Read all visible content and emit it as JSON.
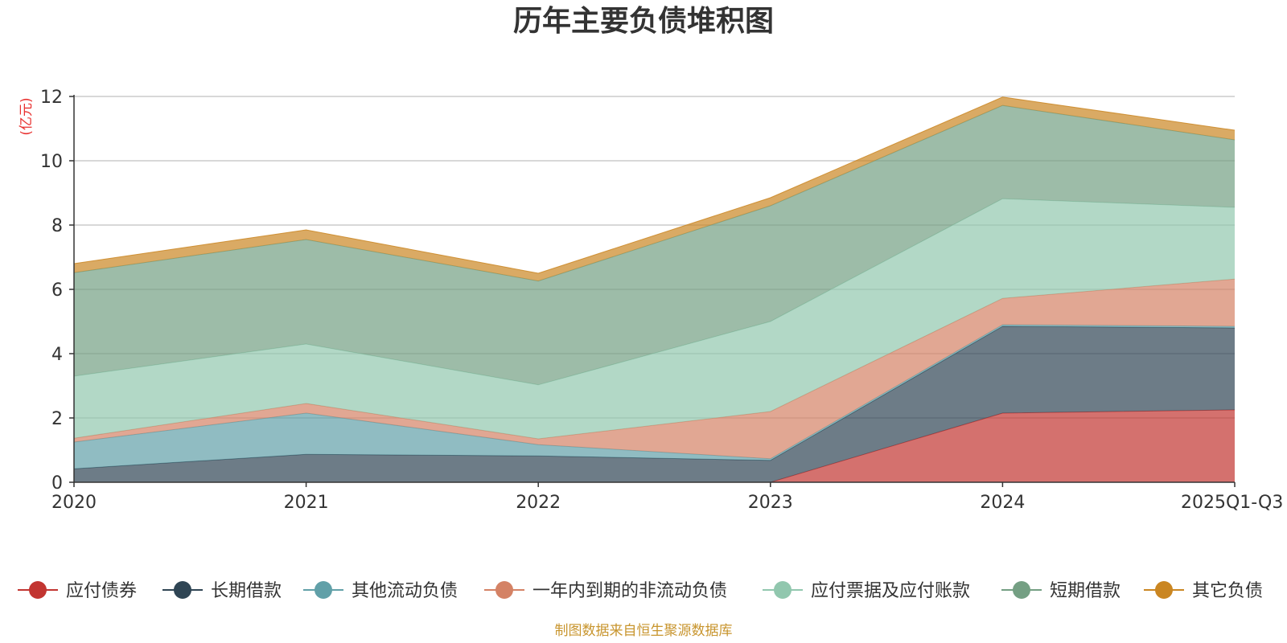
{
  "chart_data": {
    "type": "area",
    "stacked": true,
    "title": "历年主要负债堆积图",
    "unit_label": "(亿元)",
    "categories": [
      "2020",
      "2021",
      "2022",
      "2023",
      "2024",
      "2025Q1-Q3"
    ],
    "ylim": [
      0,
      12
    ],
    "yticks": [
      0,
      2,
      4,
      6,
      8,
      10,
      12
    ],
    "grid": true,
    "legend_position": "bottom",
    "series": [
      {
        "name": "应付债券",
        "color": "#c23531",
        "values": [
          0,
          0,
          0,
          0,
          2.15,
          2.25
        ]
      },
      {
        "name": "长期借款",
        "color": "#2f4554",
        "values": [
          0.42,
          0.87,
          0.82,
          0.68,
          2.7,
          2.55
        ]
      },
      {
        "name": "其他流动负债",
        "color": "#61a0a8",
        "values": [
          0.83,
          1.28,
          0.35,
          0.05,
          0.05,
          0.05
        ]
      },
      {
        "name": "一年内到期的非流动负债",
        "color": "#d48265",
        "values": [
          0.12,
          0.3,
          0.18,
          1.47,
          0.82,
          1.47
        ]
      },
      {
        "name": "应付票据及应付账款",
        "color": "#91c7ae",
        "values": [
          1.93,
          1.85,
          1.68,
          2.8,
          3.1,
          2.23
        ]
      },
      {
        "name": "短期借款",
        "color": "#749f83",
        "values": [
          3.22,
          3.25,
          3.23,
          3.6,
          2.9,
          2.1
        ]
      },
      {
        "name": "其它负债",
        "color": "#ca8622",
        "values": [
          0.28,
          0.3,
          0.24,
          0.25,
          0.26,
          0.3
        ]
      }
    ],
    "source": "制图数据来自恒生聚源数据库"
  }
}
